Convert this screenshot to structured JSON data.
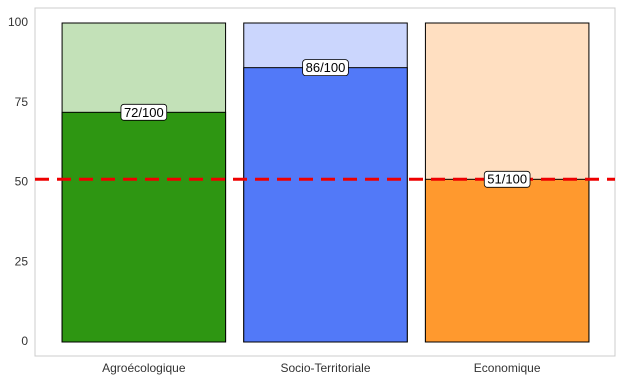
{
  "chart_data": {
    "type": "bar",
    "categories": [
      "Agroécologique",
      "Socio-Territoriale",
      "Economique"
    ],
    "values": [
      72,
      86,
      51
    ],
    "value_labels": [
      "72/100",
      "86/100",
      "51/100"
    ],
    "max_values": [
      100,
      100,
      100
    ],
    "colors": [
      "#2e9612",
      "#5279f8",
      "#ff992e"
    ],
    "background_colors": [
      "#c3e1b8",
      "#cbd6fd",
      "#ffdfc1"
    ],
    "reference_line": {
      "value": 51,
      "color": "#ee0000"
    },
    "ylim": [
      0,
      100
    ],
    "yticks": [
      0,
      25,
      50,
      75,
      100
    ],
    "grid": false
  }
}
